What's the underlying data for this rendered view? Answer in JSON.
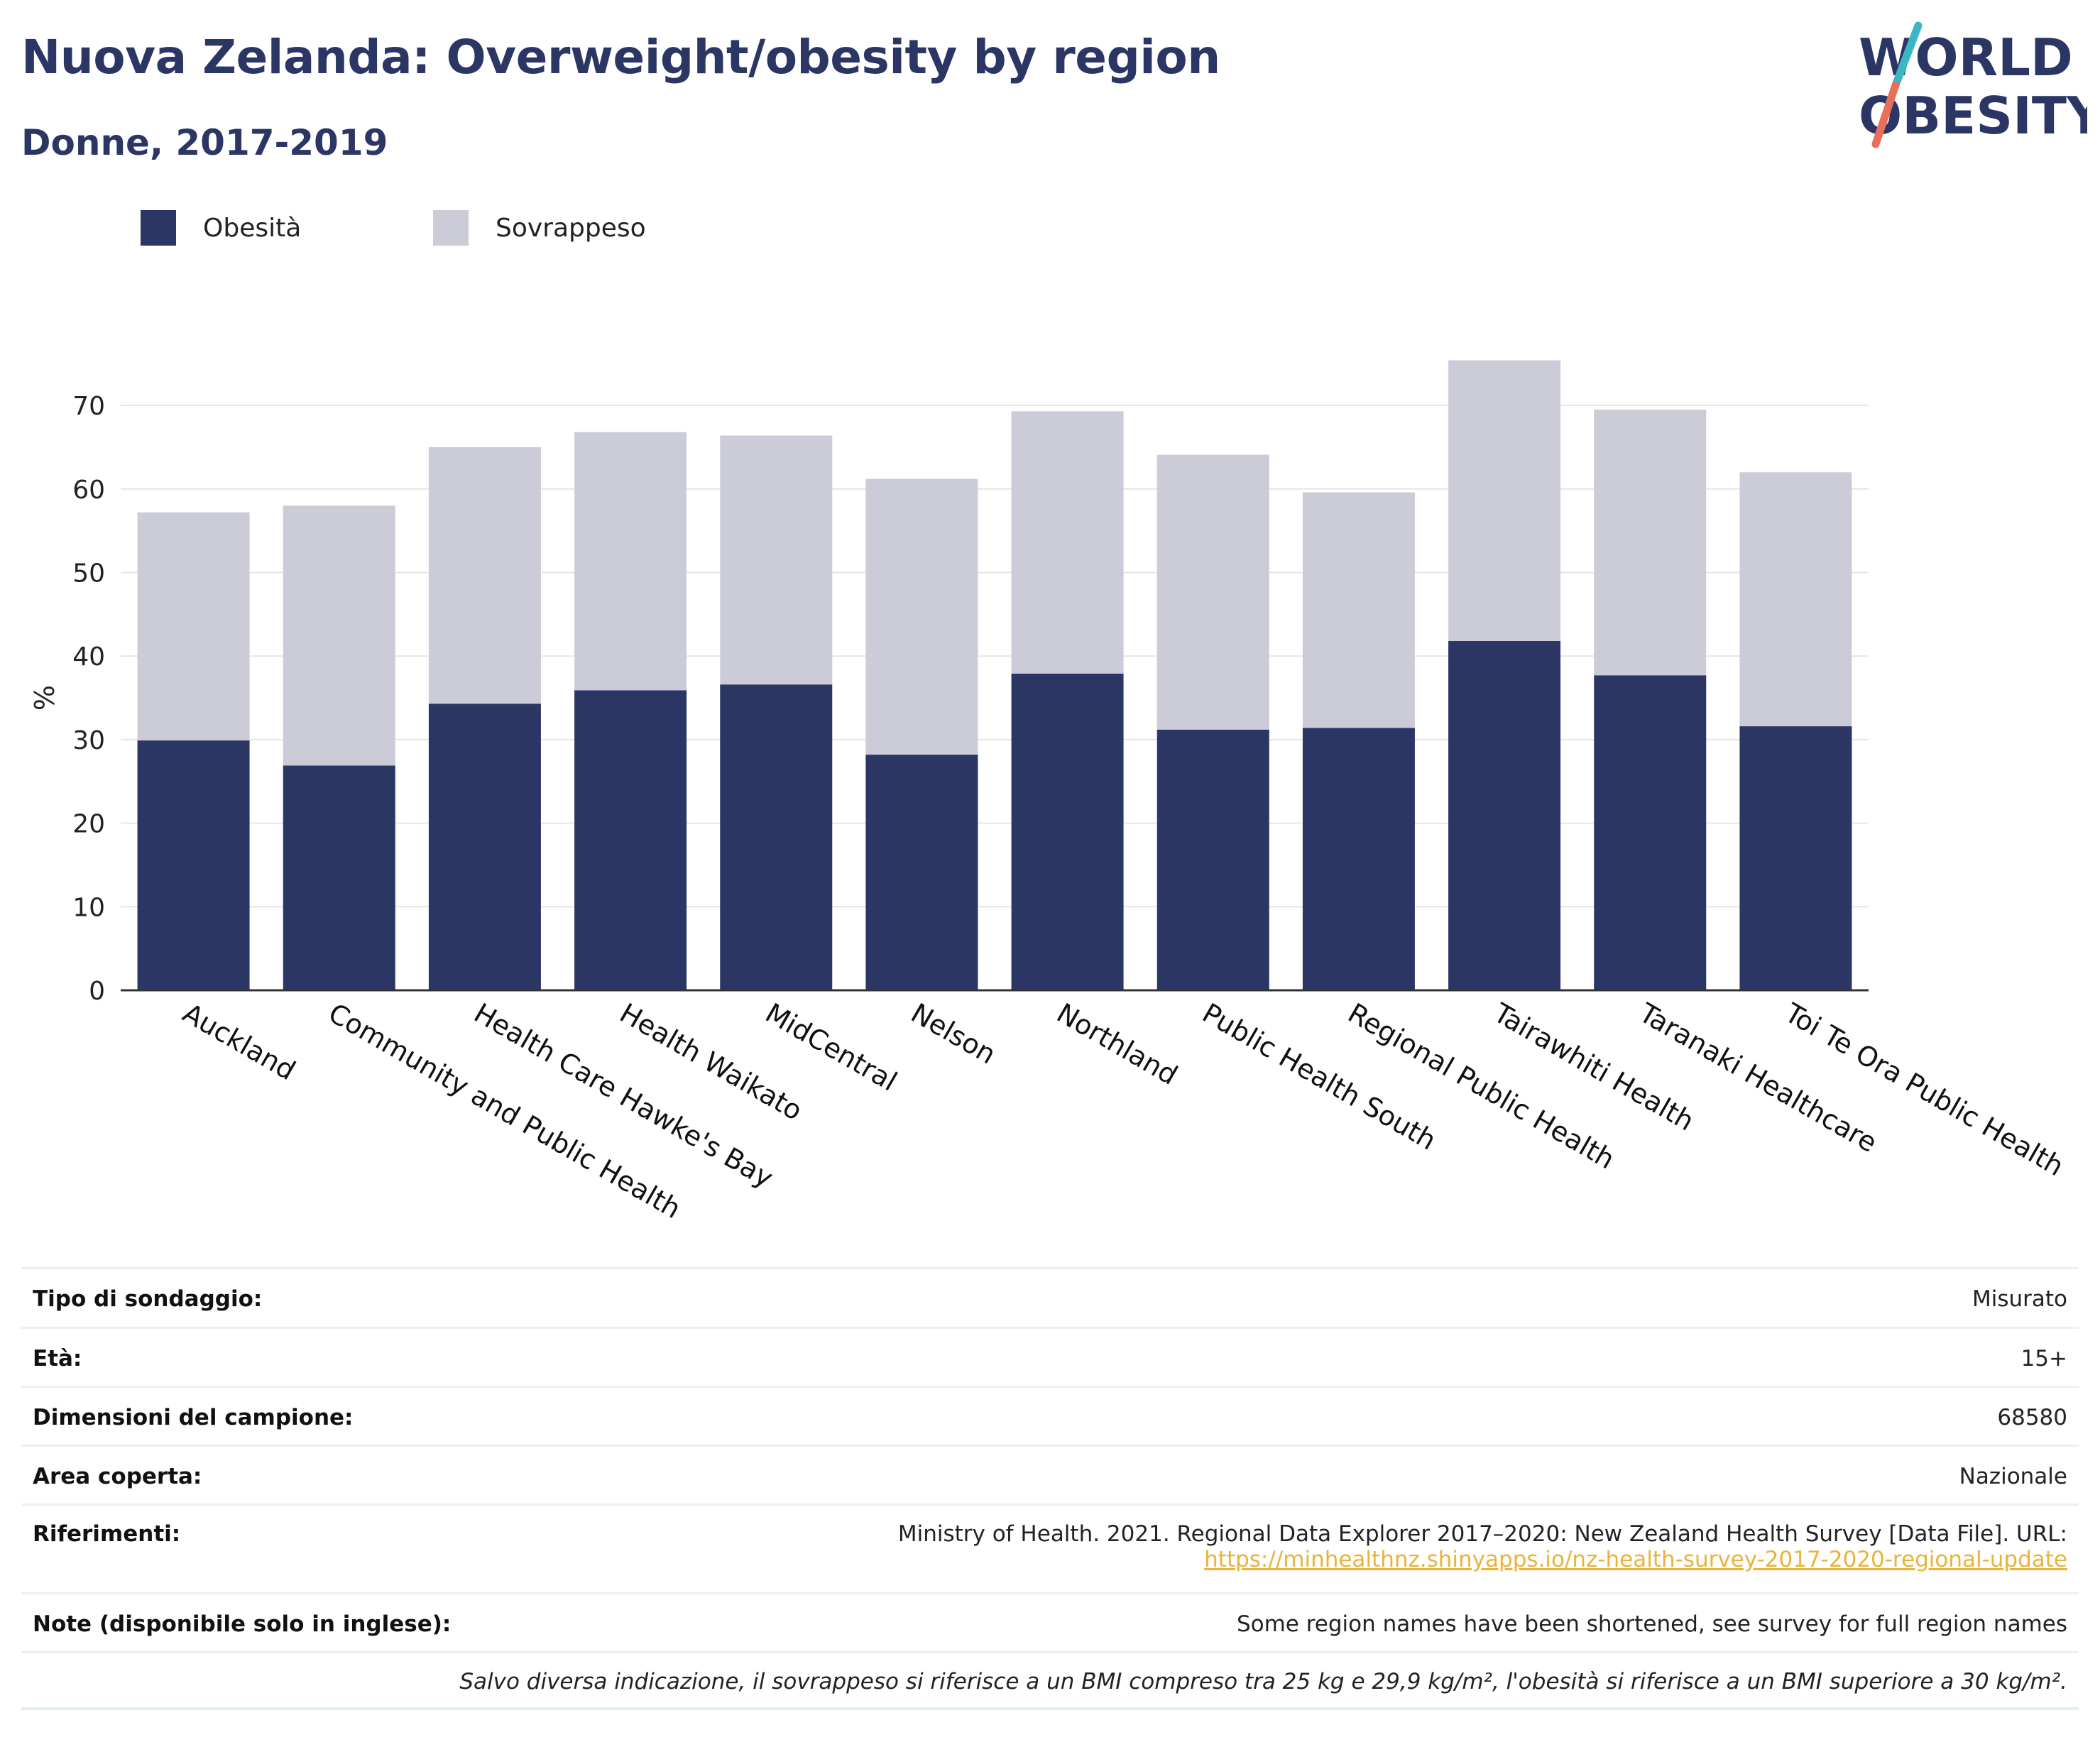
{
  "header": {
    "title": "Nuova Zelanda: Overweight/obesity by region",
    "subtitle": "Donne, 2017-2019"
  },
  "logo": {
    "line1": "WORLD",
    "line2": "OBESITY",
    "accent_teal": "#3bb7c4",
    "accent_coral": "#e8705a",
    "text_color": "#2b3664"
  },
  "legend": [
    {
      "label": "Obesità",
      "color": "#2b3664"
    },
    {
      "label": "Sovrappeso",
      "color": "#cbccd8"
    }
  ],
  "chart_data": {
    "type": "bar",
    "stacked": true,
    "categories": [
      "Auckland",
      "Community and Public Health",
      "Health Care Hawke's Bay",
      "Health Waikato",
      "MidCentral",
      "Nelson",
      "Northland",
      "Public Health South",
      "Regional Public Health",
      "Tairawhiti Health",
      "Taranaki Healthcare",
      "Toi Te Ora Public Health"
    ],
    "series": [
      {
        "name": "Obesità",
        "color": "#2b3664",
        "values": [
          29.9,
          26.9,
          34.3,
          35.9,
          36.6,
          28.2,
          37.9,
          31.2,
          31.4,
          41.8,
          37.7,
          31.6
        ]
      },
      {
        "name": "Sovrappeso",
        "color": "#cbccd8",
        "values": [
          27.3,
          31.1,
          30.7,
          30.9,
          29.8,
          33.0,
          31.4,
          32.9,
          28.2,
          33.6,
          31.8,
          30.4
        ]
      }
    ],
    "ylabel": "%",
    "xlabel": "",
    "ylim": [
      0,
      75
    ],
    "yticks": [
      0,
      10,
      20,
      30,
      40,
      50,
      60,
      70
    ],
    "grid": true,
    "legend_position": "top-left"
  },
  "details": [
    {
      "label": "Tipo di sondaggio:",
      "value": "Misurato"
    },
    {
      "label": "Età:",
      "value": "15+"
    },
    {
      "label": "Dimensioni del campione:",
      "value": "68580"
    },
    {
      "label": "Area coperta:",
      "value": "Nazionale"
    },
    {
      "label": "Riferimenti:",
      "value": "Ministry of Health. 2021. Regional Data Explorer 2017–2020: New Zealand Health Survey [Data File]. URL:",
      "link": "https://minhealthnz.shinyapps.io/nz-health-survey-2017-2020-regional-update"
    },
    {
      "label": "Note (disponibile solo in inglese):",
      "value": "Some region names have been shortened, see survey for full region names"
    }
  ],
  "footnote": "Salvo diversa indicazione, il sovrappeso si riferisce a un BMI compreso tra 25 kg e 29,9 kg/m², l'obesità si riferisce a un BMI superiore a 30 kg/m²."
}
